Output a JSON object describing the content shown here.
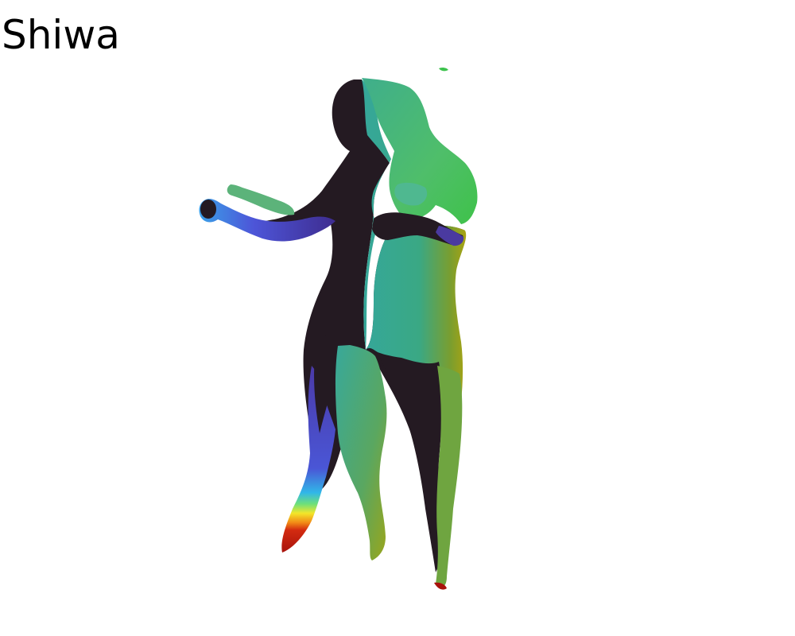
{
  "title": "Shiwa",
  "render": {
    "subject": "3d-body-scan-render",
    "colormap": "jet",
    "background_color": "#ffffff"
  }
}
